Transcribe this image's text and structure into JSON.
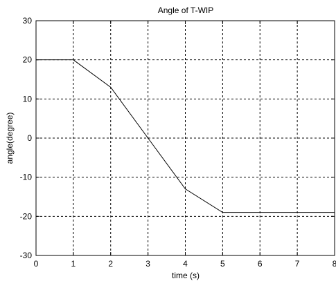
{
  "chart_data": {
    "type": "line",
    "title": "Angle of T-WIP",
    "xlabel": "time (s)",
    "ylabel": "angle(degree)",
    "xlim": [
      0,
      8
    ],
    "ylim": [
      -30,
      30
    ],
    "xticks": [
      "0",
      "1",
      "2",
      "3",
      "4",
      "5",
      "6",
      "7",
      "8"
    ],
    "yticks": [
      "30",
      "20",
      "10",
      "0",
      "-10",
      "-20",
      "-30"
    ],
    "grid": true,
    "grid_style": "dashed",
    "line_color": "#000000",
    "series": [
      {
        "x": [
          0,
          1,
          2,
          3,
          4,
          5,
          6,
          7,
          8
        ],
        "y": [
          20,
          20,
          13,
          0,
          -13,
          -19,
          -19,
          -19,
          -19
        ]
      }
    ]
  }
}
